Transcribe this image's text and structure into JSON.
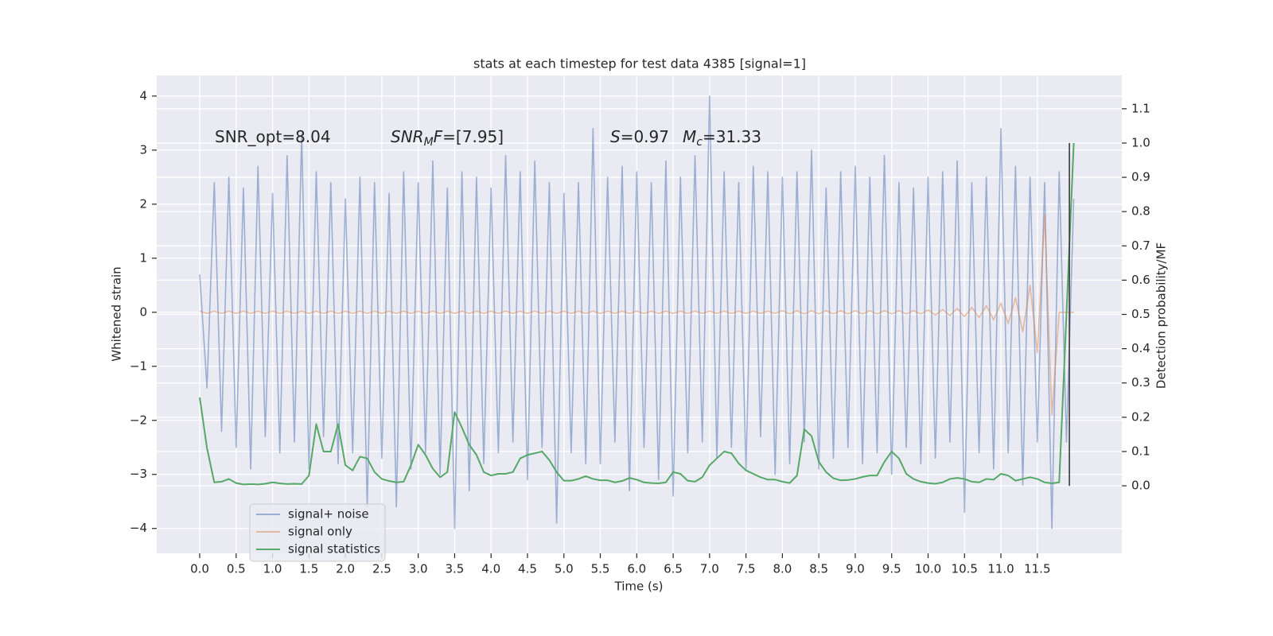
{
  "chart_data": {
    "type": "line",
    "title": "stats at each timestep for test data 4385 [signal=1]",
    "xlabel": "Time (s)",
    "ylabel": "Whitened strain",
    "y2label": "Detection probability/MF",
    "annotations": [
      [
        {
          "text": "SNR_opt=8.04"
        }
      ],
      [
        {
          "text": "SNR",
          "italic": true
        },
        {
          "text": "M",
          "italic": true,
          "sub": true
        },
        {
          "text": "F",
          "italic": true
        },
        {
          "text": "=[7.95]"
        }
      ],
      [
        {
          "text": "S",
          "italic": true
        },
        {
          "text": "=0.97"
        }
      ],
      [
        {
          "text": "M",
          "italic": true
        },
        {
          "text": "c",
          "italic": true,
          "sub": true
        },
        {
          "text": "=31.33"
        }
      ]
    ],
    "grid": true,
    "background": "#eaeaf2",
    "legend": "lower left",
    "xlim": [
      -0.59,
      12.66
    ],
    "ylim": [
      -4.46,
      4.38
    ],
    "y2lim": [
      -0.197,
      1.197
    ],
    "xticks": [
      {
        "value": 0,
        "label": "0.0"
      },
      0.5,
      {
        "value": 1,
        "label": "1.0"
      },
      1.5,
      {
        "value": 2,
        "label": "2.0"
      },
      2.5,
      {
        "value": 3,
        "label": "3.0"
      },
      3.5,
      {
        "value": 4,
        "label": "4.0"
      },
      4.5,
      {
        "value": 5,
        "label": "5.0"
      },
      5.5,
      {
        "value": 6,
        "label": "6.0"
      },
      6.5,
      {
        "value": 7,
        "label": "7.0"
      },
      7.5,
      {
        "value": 8,
        "label": "8.0"
      },
      8.5,
      {
        "value": 9,
        "label": "9.0"
      },
      9.5,
      {
        "value": 10,
        "label": "10.0"
      },
      10.5,
      {
        "value": 11,
        "label": "11.0"
      },
      11.5
    ],
    "yticks": [
      {
        "value": -4,
        "label": "−4"
      },
      {
        "value": -3,
        "label": "−3"
      },
      {
        "value": -2,
        "label": "−2"
      },
      {
        "value": -1,
        "label": "−1"
      },
      0,
      1,
      2,
      3,
      4
    ],
    "y2ticks": [
      {
        "value": 0,
        "label": "0.0"
      },
      0.1,
      0.2,
      0.3,
      0.4,
      0.5,
      0.6,
      0.7,
      0.8,
      0.9,
      {
        "value": 1,
        "label": "1.0"
      },
      1.1
    ],
    "x": [
      0,
      0.1,
      0.2,
      0.3,
      0.4,
      0.5,
      0.6,
      0.7,
      0.8,
      0.9,
      1,
      1.1,
      1.2,
      1.3,
      1.4,
      1.5,
      1.6,
      1.7,
      1.8,
      1.9,
      2,
      2.1,
      2.2,
      2.3,
      2.4,
      2.5,
      2.6,
      2.7,
      2.8,
      2.9,
      3,
      3.1,
      3.2,
      3.3,
      3.4,
      3.5,
      3.6,
      3.7,
      3.8,
      3.9,
      4,
      4.1,
      4.2,
      4.3,
      4.4,
      4.5,
      4.6,
      4.7,
      4.8,
      4.9,
      5,
      5.1,
      5.2,
      5.3,
      5.4,
      5.5,
      5.6,
      5.7,
      5.8,
      5.9,
      6,
      6.1,
      6.2,
      6.3,
      6.4,
      6.5,
      6.6,
      6.7,
      6.8,
      6.9,
      7,
      7.1,
      7.2,
      7.3,
      7.4,
      7.5,
      7.6,
      7.7,
      7.8,
      7.9,
      8,
      8.1,
      8.2,
      8.3,
      8.4,
      8.5,
      8.6,
      8.7,
      8.8,
      8.9,
      9,
      9.1,
      9.2,
      9.3,
      9.4,
      9.5,
      9.6,
      9.7,
      9.8,
      9.9,
      10,
      10.1,
      10.2,
      10.3,
      10.4,
      10.5,
      10.6,
      10.7,
      10.8,
      10.9,
      11,
      11.1,
      11.2,
      11.3,
      11.4,
      11.5,
      11.6,
      11.7,
      11.8,
      11.9,
      12
    ],
    "series": [
      {
        "name": "signal+ noise",
        "color": "#4c72b0",
        "opacity": 0.5,
        "values": [
          0.7,
          -1.4,
          2.4,
          -2.2,
          2.5,
          -2.5,
          2.3,
          -2.9,
          2.7,
          -2.3,
          2.2,
          -2.6,
          2.9,
          -2.4,
          3.3,
          -2.9,
          2.6,
          -2.3,
          2.4,
          -2.8,
          2.1,
          -2.6,
          2.5,
          -3.6,
          2.4,
          -2.7,
          2.2,
          -3.6,
          2.6,
          -2.9,
          2.4,
          -2.6,
          2.8,
          -3.0,
          2.3,
          -4.0,
          2.6,
          -3.3,
          2.5,
          -2.8,
          2.3,
          -2.6,
          2.9,
          -2.4,
          2.6,
          -3.1,
          2.8,
          -2.5,
          2.4,
          -3.9,
          2.2,
          -2.6,
          2.4,
          -2.8,
          3.4,
          -2.8,
          2.5,
          -2.4,
          2.7,
          -3.3,
          2.6,
          -2.5,
          2.4,
          -3.1,
          2.8,
          -3.4,
          2.5,
          -2.6,
          2.9,
          -2.4,
          4.0,
          -2.7,
          2.6,
          -2.5,
          2.4,
          -2.9,
          2.7,
          -2.3,
          2.6,
          -3.0,
          2.5,
          -2.8,
          2.6,
          -2.4,
          3.0,
          -2.9,
          2.3,
          -2.7,
          2.6,
          -2.5,
          2.7,
          -2.8,
          2.5,
          -2.6,
          2.9,
          -3.0,
          2.4,
          -2.5,
          2.3,
          -2.8,
          2.5,
          -2.7,
          2.6,
          -2.4,
          2.8,
          -3.7,
          2.4,
          -2.6,
          2.5,
          -2.9,
          3.4,
          -2.6,
          2.7,
          -3.2,
          2.5,
          -2.4,
          2.4,
          -4.0,
          2.6,
          -2.4,
          2.1
        ]
      },
      {
        "name": "signal only",
        "color": "#dd8452",
        "opacity": 0.5,
        "values": [
          0.02,
          -0.02,
          0.02,
          -0.02,
          0.02,
          -0.02,
          0.02,
          -0.02,
          0.02,
          -0.02,
          0.02,
          -0.02,
          0.02,
          -0.02,
          0.02,
          -0.02,
          0.02,
          -0.02,
          0.02,
          -0.02,
          0.02,
          -0.02,
          0.02,
          -0.02,
          0.02,
          -0.02,
          0.02,
          -0.02,
          0.02,
          -0.02,
          0.02,
          -0.02,
          0.02,
          -0.02,
          0.02,
          -0.02,
          0.02,
          -0.02,
          0.02,
          -0.02,
          0.02,
          -0.02,
          0.02,
          -0.02,
          0.02,
          -0.02,
          0.02,
          -0.02,
          0.02,
          -0.02,
          0.02,
          -0.02,
          0.02,
          -0.02,
          0.02,
          -0.02,
          0.02,
          -0.02,
          0.02,
          -0.02,
          0.02,
          -0.02,
          0.02,
          -0.02,
          0.02,
          -0.02,
          0.02,
          -0.02,
          0.02,
          -0.02,
          0.02,
          -0.02,
          0.02,
          -0.02,
          0.02,
          -0.02,
          0.02,
          -0.02,
          0.02,
          -0.02,
          0.03,
          -0.03,
          0.03,
          -0.03,
          0.03,
          -0.03,
          0.03,
          -0.03,
          0.03,
          -0.03,
          0.03,
          -0.03,
          0.03,
          -0.03,
          0.03,
          -0.03,
          0.03,
          -0.03,
          0.03,
          -0.03,
          0.04,
          -0.05,
          0.05,
          -0.06,
          0.07,
          -0.08,
          0.09,
          -0.1,
          0.12,
          -0.14,
          0.17,
          -0.21,
          0.27,
          -0.36,
          0.5,
          -0.75,
          1.8,
          -1.9,
          0,
          0,
          0
        ]
      },
      {
        "name": "signal statistics",
        "color": "#55a868",
        "opacity": 1,
        "axis": "y2",
        "values": [
          0.258,
          0.11,
          0.01,
          0.012,
          0.02,
          0.008,
          0.004,
          0.005,
          0.004,
          0.006,
          0.01,
          0.007,
          0.005,
          0.006,
          0.005,
          0.03,
          0.18,
          0.1,
          0.1,
          0.18,
          0.06,
          0.045,
          0.085,
          0.08,
          0.04,
          0.02,
          0.014,
          0.01,
          0.012,
          0.06,
          0.12,
          0.09,
          0.05,
          0.025,
          0.04,
          0.215,
          0.17,
          0.12,
          0.09,
          0.04,
          0.03,
          0.035,
          0.035,
          0.04,
          0.08,
          0.09,
          0.095,
          0.1,
          0.075,
          0.04,
          0.015,
          0.015,
          0.02,
          0.028,
          0.02,
          0.016,
          0.016,
          0.01,
          0.014,
          0.023,
          0.018,
          0.01,
          0.008,
          0.007,
          0.01,
          0.04,
          0.035,
          0.015,
          0.012,
          0.025,
          0.06,
          0.08,
          0.1,
          0.095,
          0.065,
          0.045,
          0.035,
          0.025,
          0.018,
          0.018,
          0.012,
          0.008,
          0.03,
          0.165,
          0.145,
          0.07,
          0.04,
          0.022,
          0.016,
          0.017,
          0.02,
          0.026,
          0.03,
          0.03,
          0.07,
          0.1,
          0.08,
          0.035,
          0.02,
          0.012,
          0.008,
          0.006,
          0.01,
          0.02,
          0.023,
          0.02,
          0.012,
          0.01,
          0.02,
          0.018,
          0.035,
          0.03,
          0.015,
          0.02,
          0.025,
          0.02,
          0.01,
          0.007,
          0.01,
          0.5,
          1.0
        ]
      }
    ],
    "vlines": [
      {
        "x": 11.94,
        "ymin": 0,
        "ymax": 1,
        "axis": "y2",
        "color": "#3a3a3a"
      }
    ]
  }
}
